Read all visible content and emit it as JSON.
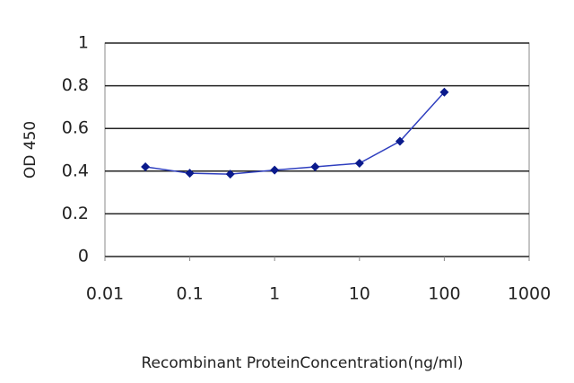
{
  "chart_data": {
    "type": "line",
    "x_label": "Recombinant ProteinConcentration(ng/ml)",
    "y_label": "OD 450",
    "x": [
      0.03,
      0.1,
      0.3,
      1,
      3,
      10,
      30,
      100
    ],
    "series": [
      {
        "color": "#2f3fbf",
        "marker_color": "#0a1a8c",
        "values": [
          0.42,
          0.39,
          0.386,
          0.405,
          0.42,
          0.437,
          0.54,
          0.77
        ]
      }
    ],
    "xlim": [
      0.01,
      1000
    ],
    "xticks": [
      0.01,
      0.1,
      1,
      10,
      100,
      1000
    ],
    "log_x": true,
    "ylim": [
      0,
      1
    ],
    "yticks": [
      0,
      0.2,
      0.4,
      0.6,
      0.8,
      1
    ],
    "grid": true
  }
}
